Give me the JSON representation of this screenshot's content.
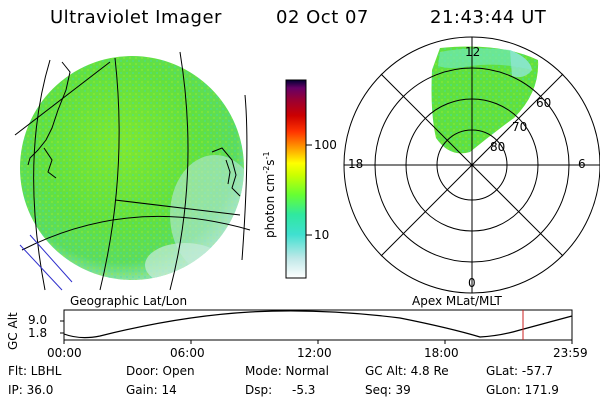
{
  "header": {
    "title": "Ultraviolet Imager",
    "date": "02 Oct 07",
    "time": "21:43:44 UT"
  },
  "left_panel": {
    "caption": "Geographic Lat/Lon"
  },
  "colorbar": {
    "label": "photon cm",
    "label_exp1": "-2",
    "label_mid": "s",
    "label_exp2": "-1",
    "ticks": [
      "100",
      "10"
    ],
    "scale": "log",
    "colors": [
      "#ffffff",
      "#bfe8e8",
      "#3fe0d0",
      "#66ff33",
      "#ccff00",
      "#ffff00",
      "#ff9900",
      "#ff3300",
      "#cc0000",
      "#990033",
      "#660066",
      "#000033"
    ]
  },
  "polar_plot": {
    "caption": "Apex MLat/MLT",
    "mlt_labels": {
      "top": "12",
      "left": "18",
      "right": "6",
      "bottom": "0"
    },
    "lat_labels": [
      "60",
      "70",
      "80"
    ]
  },
  "altitude_plot": {
    "ylabel": "GC Alt",
    "yticks": [
      "9.0",
      "1.8"
    ],
    "xticks": [
      "00:00",
      "06:00",
      "12:00",
      "18:00",
      "23:59"
    ],
    "marker_time": "21:43:44"
  },
  "info": {
    "flt": "Flt: LBHL",
    "ip": "IP: 36.0",
    "door": "Door: Open",
    "gain": "Gain: 14",
    "mode": "Mode: Normal",
    "dsp_label": "Dsp:",
    "dsp_value": "-5.3",
    "gc_alt": "GC Alt: 4.8 Re",
    "seq": "Seq: 39",
    "glat": "GLat: -57.7",
    "glon": "GLon: 171.9"
  },
  "colors": {
    "aurora_green": "#5fe03a",
    "aurora_cyan": "#3fe0d0",
    "marker_red": "#cc2222",
    "graticule_blue": "#3030cc"
  }
}
